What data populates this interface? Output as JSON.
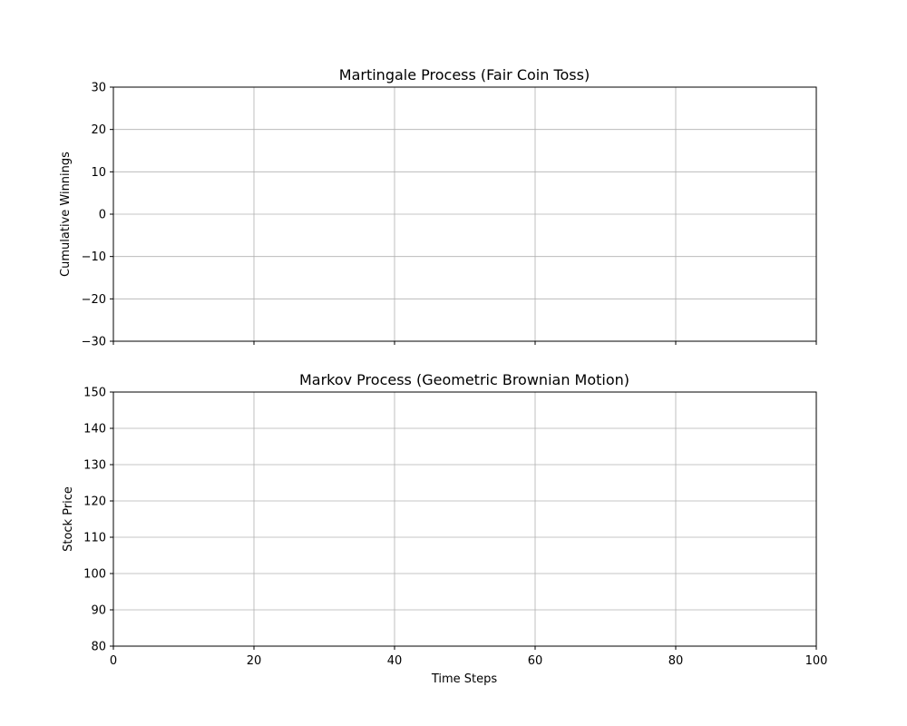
{
  "chart_data": [
    {
      "type": "line",
      "title": "Martingale Process (Fair Coin Toss)",
      "xlabel": "",
      "ylabel": "Cumulative Winnings",
      "xlim": [
        0,
        100
      ],
      "ylim": [
        -30,
        30
      ],
      "xticks": [
        0,
        20,
        40,
        60,
        80,
        100
      ],
      "yticks": [
        -30,
        -20,
        -10,
        0,
        10,
        20,
        30
      ],
      "ytick_labels": [
        "−30",
        "−20",
        "−10",
        "0",
        "10",
        "20",
        "30"
      ],
      "show_xtick_labels": false,
      "grid": true,
      "series": []
    },
    {
      "type": "line",
      "title": "Markov Process (Geometric Brownian Motion)",
      "xlabel": "Time Steps",
      "ylabel": "Stock Price",
      "xlim": [
        0,
        100
      ],
      "ylim": [
        80,
        150
      ],
      "xticks": [
        0,
        20,
        40,
        60,
        80,
        100
      ],
      "yticks": [
        80,
        90,
        100,
        110,
        120,
        130,
        140,
        150
      ],
      "ytick_labels": [
        "80",
        "90",
        "100",
        "110",
        "120",
        "130",
        "140",
        "150"
      ],
      "show_xtick_labels": true,
      "grid": true,
      "series": []
    }
  ]
}
